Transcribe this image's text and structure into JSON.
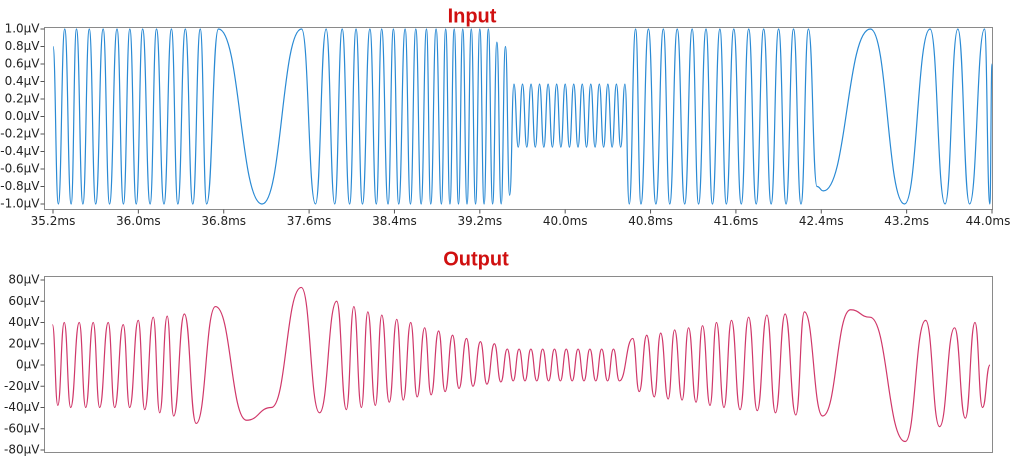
{
  "chart_data": [
    {
      "type": "line",
      "title": "Input",
      "xlim": [
        35.2,
        44.0
      ],
      "xticks": [
        {
          "value": 35.2,
          "label": "35.2ms"
        },
        {
          "value": 36.0,
          "label": "36.0ms"
        },
        {
          "value": 36.8,
          "label": "36.8ms"
        },
        {
          "value": 37.6,
          "label": "37.6ms"
        },
        {
          "value": 38.4,
          "label": "38.4ms"
        },
        {
          "value": 39.2,
          "label": "39.2ms"
        },
        {
          "value": 40.0,
          "label": "40.0ms"
        },
        {
          "value": 40.8,
          "label": "40.8ms"
        },
        {
          "value": 41.6,
          "label": "41.6ms"
        },
        {
          "value": 42.4,
          "label": "42.4ms"
        },
        {
          "value": 43.2,
          "label": "43.2ms"
        },
        {
          "value": 44.0,
          "label": "44.0ms"
        }
      ],
      "ylim": [
        -1.0,
        1.0
      ],
      "yticks": [
        {
          "value": 1.0,
          "label": "1.0µV"
        },
        {
          "value": 0.8,
          "label": "0.8µV"
        },
        {
          "value": 0.6,
          "label": "0.6µV"
        },
        {
          "value": 0.4,
          "label": "0.4µV"
        },
        {
          "value": 0.2,
          "label": "0.2µV"
        },
        {
          "value": 0.0,
          "label": "0.0µV"
        },
        {
          "value": -0.2,
          "label": "-0.2µV"
        },
        {
          "value": -0.4,
          "label": "-0.4µV"
        },
        {
          "value": -0.6,
          "label": "-0.6µV"
        },
        {
          "value": -0.8,
          "label": "-0.8µV"
        },
        {
          "value": -1.0,
          "label": "-1.0µV"
        }
      ],
      "color": "#2a8ad4",
      "x": [
        35.2,
        35.25,
        35.31,
        35.37,
        35.42,
        35.48,
        35.54,
        35.6,
        35.67,
        35.73,
        35.8,
        35.86,
        35.92,
        35.98,
        36.04,
        36.11,
        36.17,
        36.24,
        36.31,
        36.37,
        36.44,
        36.51,
        36.58,
        36.64,
        36.75,
        37.16,
        37.53,
        37.66,
        37.76,
        37.84,
        37.91,
        37.98,
        38.04,
        38.1,
        38.17,
        38.23,
        38.28,
        38.34,
        38.39,
        38.44,
        38.5,
        38.55,
        38.6,
        38.65,
        38.7,
        38.74,
        38.79,
        38.84,
        38.88,
        38.92,
        38.96,
        39.0,
        39.04,
        39.08,
        39.12,
        39.16,
        39.2,
        39.24,
        39.28,
        39.32,
        39.36,
        39.4,
        39.44,
        39.48,
        39.52,
        39.56,
        39.6,
        39.64,
        39.68,
        39.72,
        39.76,
        39.8,
        39.84,
        39.88,
        39.92,
        39.96,
        40.0,
        40.04,
        40.08,
        40.12,
        40.16,
        40.2,
        40.24,
        40.28,
        40.32,
        40.36,
        40.4,
        40.44,
        40.48,
        40.52,
        40.56,
        40.6,
        40.66,
        40.71,
        40.78,
        40.85,
        40.92,
        40.98,
        41.05,
        41.12,
        41.19,
        41.25,
        41.32,
        41.38,
        41.45,
        41.51,
        41.58,
        41.65,
        41.72,
        41.79,
        41.86,
        41.93,
        42.0,
        42.07,
        42.14,
        42.21,
        42.28,
        42.36,
        42.42,
        42.86,
        43.18,
        43.42,
        43.56,
        43.68,
        43.79,
        43.93,
        43.98,
        44.0
      ],
      "values": [
        0.8,
        -1,
        1,
        -1,
        1,
        -1,
        1,
        -1,
        1,
        -1,
        1,
        -1,
        1,
        -1,
        1,
        -1,
        1,
        -1,
        1,
        -1,
        1,
        -1,
        1,
        -1,
        1,
        -1,
        1,
        -1,
        1,
        -1,
        1,
        -1,
        1,
        -1,
        1,
        -1,
        1,
        -1,
        1,
        -1,
        1,
        -1,
        1,
        -1,
        1,
        -1,
        1,
        -1,
        1,
        -1,
        1,
        -1,
        1,
        -1,
        1,
        -1,
        1,
        -1,
        1,
        -1,
        0.85,
        -1,
        0.8,
        -0.9,
        0.37,
        -0.35,
        0.37,
        -0.35,
        0.37,
        -0.35,
        0.37,
        -0.35,
        0.37,
        -0.35,
        0.37,
        -0.35,
        0.37,
        -0.35,
        0.37,
        -0.35,
        0.37,
        -0.35,
        0.37,
        -0.35,
        0.37,
        -0.35,
        0.37,
        -0.35,
        0.37,
        -0.35,
        0.37,
        -1,
        1,
        -1,
        1,
        -1,
        1,
        -1,
        1,
        -1,
        1,
        -1,
        1,
        -1,
        1,
        -1,
        1,
        -1,
        1,
        -1,
        1,
        -1,
        1,
        -1,
        1,
        -1,
        1,
        -0.8,
        -0.85,
        1,
        -1,
        1,
        -1,
        1,
        -1,
        1,
        -1,
        0.6
      ]
    },
    {
      "type": "line",
      "title": "Output",
      "xlim": [
        35.2,
        44.0
      ],
      "ylim": [
        -80,
        80
      ],
      "yticks": [
        {
          "value": 80,
          "label": "80µV"
        },
        {
          "value": 60,
          "label": "60µV"
        },
        {
          "value": 40,
          "label": "40µV"
        },
        {
          "value": 20,
          "label": "20µV"
        },
        {
          "value": 0,
          "label": "0µV"
        },
        {
          "value": -20,
          "label": "-20µV"
        },
        {
          "value": -40,
          "label": "-40µV"
        },
        {
          "value": -60,
          "label": "-60µV"
        },
        {
          "value": -80,
          "label": "-80µV"
        }
      ],
      "color": "#d0386a",
      "x": [
        35.26,
        35.31,
        35.37,
        35.43,
        35.51,
        35.57,
        35.64,
        35.7,
        35.78,
        35.84,
        35.92,
        35.98,
        36.06,
        36.12,
        36.2,
        36.26,
        36.33,
        36.39,
        36.49,
        36.6,
        36.78,
        37.07,
        37.3,
        37.58,
        37.75,
        37.91,
        38.0,
        38.07,
        38.14,
        38.2,
        38.27,
        38.33,
        38.4,
        38.47,
        38.53,
        38.6,
        38.66,
        38.73,
        38.79,
        38.86,
        38.92,
        38.99,
        39.05,
        39.12,
        39.18,
        39.25,
        39.31,
        39.38,
        39.44,
        39.5,
        39.555,
        39.61,
        39.665,
        39.72,
        39.775,
        39.83,
        39.885,
        39.94,
        39.995,
        40.05,
        40.105,
        40.16,
        40.215,
        40.27,
        40.325,
        40.38,
        40.435,
        40.49,
        40.545,
        40.67,
        40.73,
        40.8,
        40.87,
        40.93,
        41.0,
        41.06,
        41.13,
        41.19,
        41.26,
        41.32,
        41.39,
        41.45,
        41.52,
        41.59,
        41.67,
        41.75,
        41.83,
        41.92,
        42.0,
        42.09,
        42.19,
        42.27,
        42.44,
        42.7,
        42.88,
        43.21,
        43.4,
        43.53,
        43.67,
        43.77,
        43.86,
        43.93,
        44.0
      ],
      "values": [
        38,
        -38,
        40,
        -40,
        40,
        -40,
        40,
        -40,
        40,
        -40,
        38,
        -40,
        42,
        -42,
        45,
        -45,
        46,
        -48,
        48,
        -55,
        55,
        -52,
        -40,
        73,
        -45,
        60,
        -42,
        55,
        -40,
        50,
        -38,
        47,
        -35,
        43,
        -33,
        40,
        -30,
        35,
        -28,
        32,
        -25,
        28,
        -22,
        25,
        -20,
        22,
        -18,
        20,
        -16,
        15,
        -15,
        15,
        -15,
        15,
        -15,
        15,
        -15,
        15,
        -15,
        15,
        -15,
        15,
        -15,
        15,
        -15,
        15,
        -15,
        15,
        -15,
        25,
        -25,
        28,
        -30,
        30,
        -32,
        33,
        -33,
        35,
        -35,
        37,
        -38,
        40,
        -40,
        42,
        -42,
        45,
        -43,
        47,
        -45,
        48,
        -47,
        50,
        -48,
        52,
        45,
        -72,
        42,
        -58,
        35,
        -50,
        40,
        -40,
        0
      ]
    }
  ]
}
